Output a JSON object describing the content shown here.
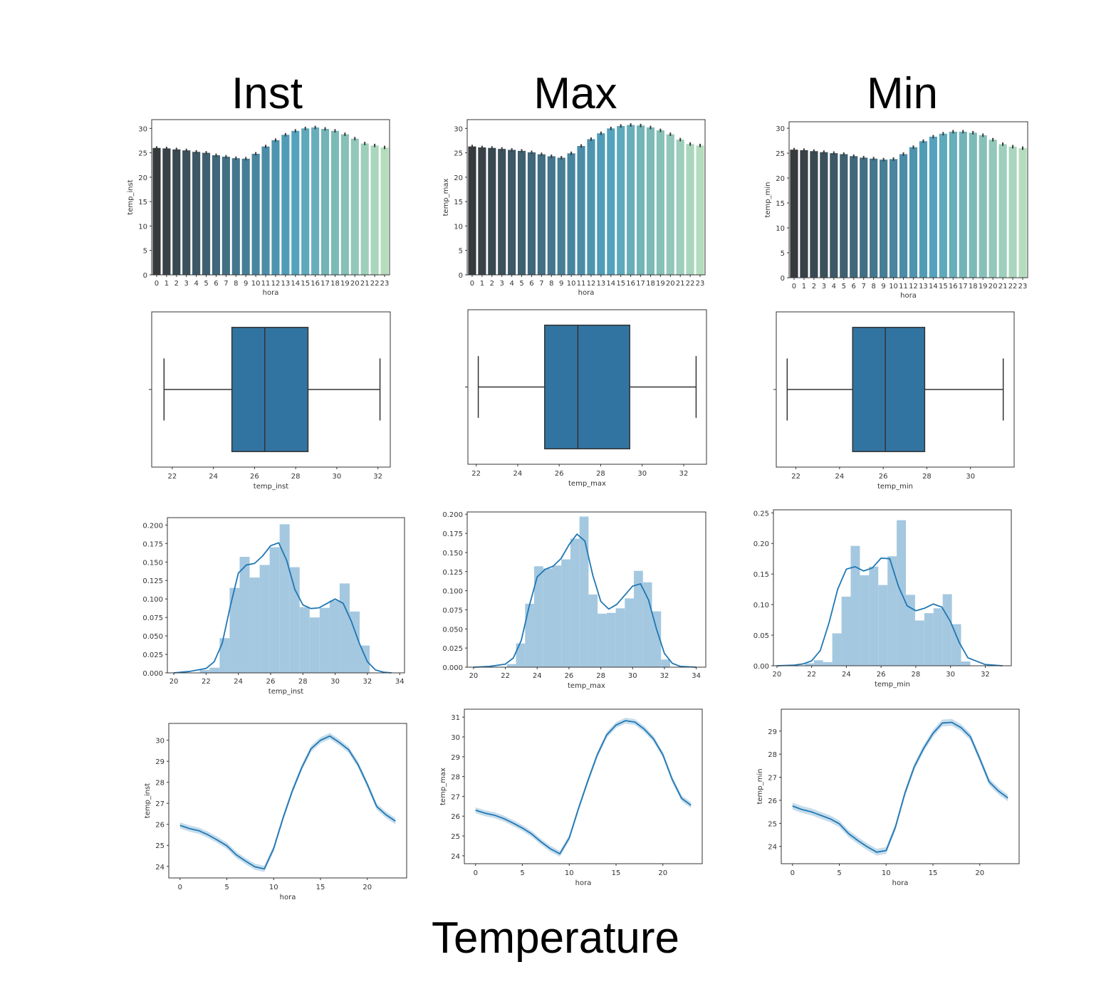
{
  "column_titles": [
    "Inst",
    "Max",
    "Min"
  ],
  "figure_title": "Temperature",
  "colors": {
    "line": "#1f77b4",
    "box": "#3274a1",
    "hist": "#a4c8e0",
    "axis": "#333333"
  },
  "chart_data": [
    {
      "type": "bar",
      "column": "Inst",
      "xlabel": "hora",
      "ylabel": "temp_inst",
      "categories": [
        "0",
        "1",
        "2",
        "3",
        "4",
        "5",
        "6",
        "7",
        "8",
        "9",
        "10",
        "11",
        "12",
        "13",
        "14",
        "15",
        "16",
        "17",
        "18",
        "19",
        "20",
        "21",
        "22",
        "23"
      ],
      "values": [
        26.0,
        25.9,
        25.7,
        25.5,
        25.2,
        25.0,
        24.5,
        24.2,
        23.9,
        23.8,
        24.8,
        26.3,
        27.6,
        28.7,
        29.5,
        30.0,
        30.2,
        29.9,
        29.5,
        28.8,
        27.9,
        26.9,
        26.5,
        26.1
      ],
      "yticks": [
        0,
        5,
        10,
        15,
        20,
        25,
        30
      ],
      "ylim": [
        0,
        31.8
      ],
      "error_bars": true
    },
    {
      "type": "bar",
      "column": "Max",
      "xlabel": "hora",
      "ylabel": "temp_max",
      "categories": [
        "0",
        "1",
        "2",
        "3",
        "4",
        "5",
        "6",
        "7",
        "8",
        "9",
        "10",
        "11",
        "12",
        "13",
        "14",
        "15",
        "16",
        "17",
        "18",
        "19",
        "20",
        "21",
        "22",
        "23"
      ],
      "values": [
        26.3,
        26.1,
        26.0,
        25.8,
        25.6,
        25.4,
        25.1,
        24.7,
        24.3,
        24.0,
        24.9,
        26.4,
        27.8,
        29.0,
        30.0,
        30.5,
        30.7,
        30.6,
        30.2,
        29.6,
        28.8,
        27.7,
        26.8,
        26.5
      ],
      "yticks": [
        0,
        5,
        10,
        15,
        20,
        25,
        30
      ],
      "ylim": [
        0,
        31.8
      ],
      "error_bars": true
    },
    {
      "type": "bar",
      "column": "Min",
      "xlabel": "hora",
      "ylabel": "temp_min",
      "categories": [
        "0",
        "1",
        "2",
        "3",
        "4",
        "5",
        "6",
        "7",
        "8",
        "9",
        "10",
        "11",
        "12",
        "13",
        "14",
        "15",
        "16",
        "17",
        "18",
        "19",
        "20",
        "21",
        "22",
        "23"
      ],
      "values": [
        25.7,
        25.6,
        25.4,
        25.2,
        25.0,
        24.8,
        24.4,
        24.1,
        23.9,
        23.7,
        23.8,
        24.8,
        26.2,
        27.4,
        28.3,
        28.9,
        29.3,
        29.3,
        29.1,
        28.6,
        27.7,
        26.8,
        26.3,
        26.0
      ],
      "yticks": [
        0,
        5,
        10,
        15,
        20,
        25,
        30
      ],
      "ylim": [
        0,
        31.3
      ],
      "error_bars": true
    },
    {
      "type": "box",
      "column": "Inst",
      "xlabel": "temp_inst",
      "whisker_low": 21.6,
      "q1": 24.9,
      "median": 26.5,
      "q3": 28.6,
      "whisker_high": 32.1,
      "xticks": [
        22,
        24,
        26,
        28,
        30,
        32
      ],
      "xlim": [
        21.0,
        32.6
      ]
    },
    {
      "type": "box",
      "column": "Max",
      "xlabel": "temp_max",
      "whisker_low": 22.1,
      "q1": 25.3,
      "median": 26.9,
      "q3": 29.4,
      "whisker_high": 32.6,
      "xticks": [
        22,
        24,
        26,
        28,
        30,
        32
      ],
      "xlim": [
        21.6,
        33.1
      ]
    },
    {
      "type": "box",
      "column": "Min",
      "xlabel": "temp_min",
      "whisker_low": 21.6,
      "q1": 24.6,
      "median": 26.1,
      "q3": 27.9,
      "whisker_high": 31.5,
      "xticks": [
        22,
        24,
        26,
        28,
        30
      ],
      "xlim": [
        21.1,
        32.0
      ]
    },
    {
      "type": "histogram",
      "column": "Inst",
      "xlabel": "temp_inst",
      "bin_edges": [
        21.6,
        22.22,
        22.84,
        23.46,
        24.08,
        24.7,
        25.32,
        25.94,
        26.56,
        27.18,
        27.8,
        28.42,
        29.04,
        29.66,
        30.28,
        30.9,
        31.52,
        32.14
      ],
      "densities": [
        0.004,
        0.007,
        0.047,
        0.115,
        0.157,
        0.129,
        0.146,
        0.17,
        0.201,
        0.143,
        0.089,
        0.075,
        0.088,
        0.098,
        0.121,
        0.083,
        0.037,
        0.01
      ],
      "kde_x": [
        20.0,
        21,
        22,
        22.5,
        23,
        23.5,
        24,
        24.5,
        25,
        25.5,
        26,
        26.5,
        27,
        27.5,
        28,
        28.5,
        29,
        29.5,
        30,
        30.5,
        31,
        31.5,
        32,
        32.5,
        33,
        33.5
      ],
      "kde_y": [
        0.0,
        0.002,
        0.006,
        0.015,
        0.04,
        0.09,
        0.135,
        0.146,
        0.148,
        0.158,
        0.172,
        0.176,
        0.152,
        0.113,
        0.092,
        0.087,
        0.088,
        0.094,
        0.1,
        0.094,
        0.07,
        0.04,
        0.015,
        0.004,
        0.001,
        0.0
      ],
      "xticks": [
        20,
        22,
        24,
        26,
        28,
        30,
        32,
        34
      ],
      "xlim": [
        19.6,
        34.3
      ],
      "yticks": [
        0.0,
        0.025,
        0.05,
        0.075,
        0.1,
        0.125,
        0.15,
        0.175,
        0.2
      ],
      "ytick_labels": [
        "0.000",
        "0.025",
        "0.050",
        "0.075",
        "0.100",
        "0.125",
        "0.150",
        "0.175",
        "0.200"
      ],
      "ylim": [
        0,
        0.21
      ]
    },
    {
      "type": "histogram",
      "column": "Max",
      "xlabel": "temp_max",
      "bin_edges": [
        22.1,
        22.67,
        23.24,
        23.81,
        24.38,
        24.95,
        25.52,
        26.09,
        26.66,
        27.23,
        27.8,
        28.37,
        28.94,
        29.51,
        30.08,
        30.65,
        31.22,
        31.79,
        32.36
      ],
      "densities": [
        0.004,
        0.031,
        0.083,
        0.132,
        0.129,
        0.133,
        0.141,
        0.168,
        0.197,
        0.095,
        0.07,
        0.071,
        0.077,
        0.09,
        0.126,
        0.111,
        0.073,
        0.01
      ],
      "kde_x": [
        20.0,
        21,
        22,
        22.5,
        23,
        23.5,
        24,
        24.5,
        25,
        25.5,
        26,
        26.5,
        27,
        27.5,
        28,
        28.5,
        29,
        29.5,
        30,
        30.5,
        31,
        31.5,
        32,
        32.5,
        33,
        34
      ],
      "kde_y": [
        0.0,
        0.001,
        0.004,
        0.012,
        0.035,
        0.08,
        0.118,
        0.128,
        0.132,
        0.142,
        0.16,
        0.174,
        0.165,
        0.12,
        0.086,
        0.076,
        0.082,
        0.094,
        0.106,
        0.109,
        0.088,
        0.05,
        0.018,
        0.005,
        0.001,
        0.0
      ],
      "xticks": [
        20,
        22,
        24,
        26,
        28,
        30,
        32,
        34
      ],
      "xlim": [
        19.6,
        34.6
      ],
      "yticks": [
        0.0,
        0.025,
        0.05,
        0.075,
        0.1,
        0.125,
        0.15,
        0.175,
        0.2
      ],
      "ytick_labels": [
        "0.000",
        "0.025",
        "0.050",
        "0.075",
        "0.100",
        "0.125",
        "0.150",
        "0.175",
        "0.200"
      ],
      "ylim": [
        0,
        0.203
      ]
    },
    {
      "type": "histogram",
      "column": "Min",
      "xlabel": "temp_min",
      "bin_edges": [
        21.6,
        22.13,
        22.66,
        23.19,
        23.72,
        24.25,
        24.78,
        25.31,
        25.84,
        26.37,
        26.9,
        27.43,
        27.96,
        28.49,
        29.02,
        29.55,
        30.08,
        30.61,
        31.14
      ],
      "densities": [
        0.004,
        0.009,
        0.006,
        0.053,
        0.113,
        0.196,
        0.148,
        0.162,
        0.132,
        0.179,
        0.238,
        0.116,
        0.074,
        0.086,
        0.094,
        0.117,
        0.068,
        0.007
      ],
      "kde_x": [
        20.0,
        21,
        21.5,
        22,
        22.5,
        23,
        23.5,
        24,
        24.5,
        25,
        25.5,
        26,
        26.5,
        27,
        27.5,
        28,
        28.5,
        29,
        29.5,
        30,
        30.5,
        31,
        32,
        33
      ],
      "kde_y": [
        0.0,
        0.001,
        0.003,
        0.008,
        0.025,
        0.07,
        0.125,
        0.158,
        0.162,
        0.155,
        0.16,
        0.176,
        0.175,
        0.13,
        0.098,
        0.09,
        0.094,
        0.101,
        0.096,
        0.072,
        0.038,
        0.013,
        0.002,
        0.0
      ],
      "xticks": [
        20,
        22,
        24,
        26,
        28,
        30,
        32
      ],
      "xlim": [
        19.8,
        33.5
      ],
      "yticks": [
        0.0,
        0.05,
        0.1,
        0.15,
        0.2,
        0.25
      ],
      "ytick_labels": [
        "0.00",
        "0.05",
        "0.10",
        "0.15",
        "0.20",
        "0.25"
      ],
      "ylim": [
        0,
        0.255
      ]
    },
    {
      "type": "line",
      "column": "Inst",
      "xlabel": "hora",
      "ylabel": "temp_inst",
      "x": [
        0,
        1,
        2,
        3,
        4,
        5,
        6,
        7,
        8,
        9,
        10,
        11,
        12,
        13,
        14,
        15,
        16,
        17,
        18,
        19,
        20,
        21,
        22,
        23
      ],
      "y": [
        25.95,
        25.8,
        25.7,
        25.5,
        25.25,
        24.98,
        24.55,
        24.25,
        23.98,
        23.88,
        24.85,
        26.3,
        27.6,
        28.7,
        29.6,
        30.0,
        30.2,
        29.9,
        29.55,
        28.85,
        27.9,
        26.85,
        26.45,
        26.15
      ],
      "ci": 0.15,
      "xticks": [
        0,
        5,
        10,
        15,
        20
      ],
      "xlim": [
        -1.2,
        24.2
      ],
      "yticks": [
        24,
        25,
        26,
        27,
        28,
        29,
        30
      ],
      "ylim": [
        23.45,
        30.8
      ]
    },
    {
      "type": "line",
      "column": "Max",
      "xlabel": "hora",
      "ylabel": "temp_max",
      "x": [
        0,
        1,
        2,
        3,
        4,
        5,
        6,
        7,
        8,
        9,
        10,
        11,
        12,
        13,
        14,
        15,
        16,
        17,
        18,
        19,
        20,
        21,
        22,
        23
      ],
      "y": [
        26.3,
        26.15,
        26.05,
        25.88,
        25.65,
        25.4,
        25.1,
        24.7,
        24.35,
        24.1,
        24.9,
        26.4,
        27.8,
        29.1,
        30.1,
        30.6,
        30.82,
        30.75,
        30.4,
        29.9,
        29.1,
        27.85,
        26.9,
        26.55
      ],
      "ci": 0.15,
      "xticks": [
        0,
        5,
        10,
        15,
        20
      ],
      "xlim": [
        -1.2,
        24.2
      ],
      "yticks": [
        24,
        25,
        26,
        27,
        28,
        29,
        30,
        31
      ],
      "ylim": [
        23.6,
        31.4
      ]
    },
    {
      "type": "line",
      "column": "Min",
      "xlabel": "hora",
      "ylabel": "temp_min",
      "x": [
        0,
        1,
        2,
        3,
        4,
        5,
        6,
        7,
        8,
        9,
        10,
        11,
        12,
        13,
        14,
        15,
        16,
        17,
        18,
        19,
        20,
        21,
        22,
        23
      ],
      "y": [
        25.75,
        25.6,
        25.5,
        25.35,
        25.2,
        24.98,
        24.55,
        24.25,
        23.98,
        23.75,
        23.82,
        24.85,
        26.3,
        27.45,
        28.25,
        28.9,
        29.35,
        29.38,
        29.15,
        28.75,
        27.8,
        26.8,
        26.4,
        26.1
      ],
      "ci": 0.15,
      "xticks": [
        0,
        5,
        10,
        15,
        20
      ],
      "xlim": [
        -1.2,
        24.2
      ],
      "yticks": [
        24,
        25,
        26,
        27,
        28,
        29
      ],
      "ylim": [
        23.25,
        29.95
      ]
    }
  ]
}
